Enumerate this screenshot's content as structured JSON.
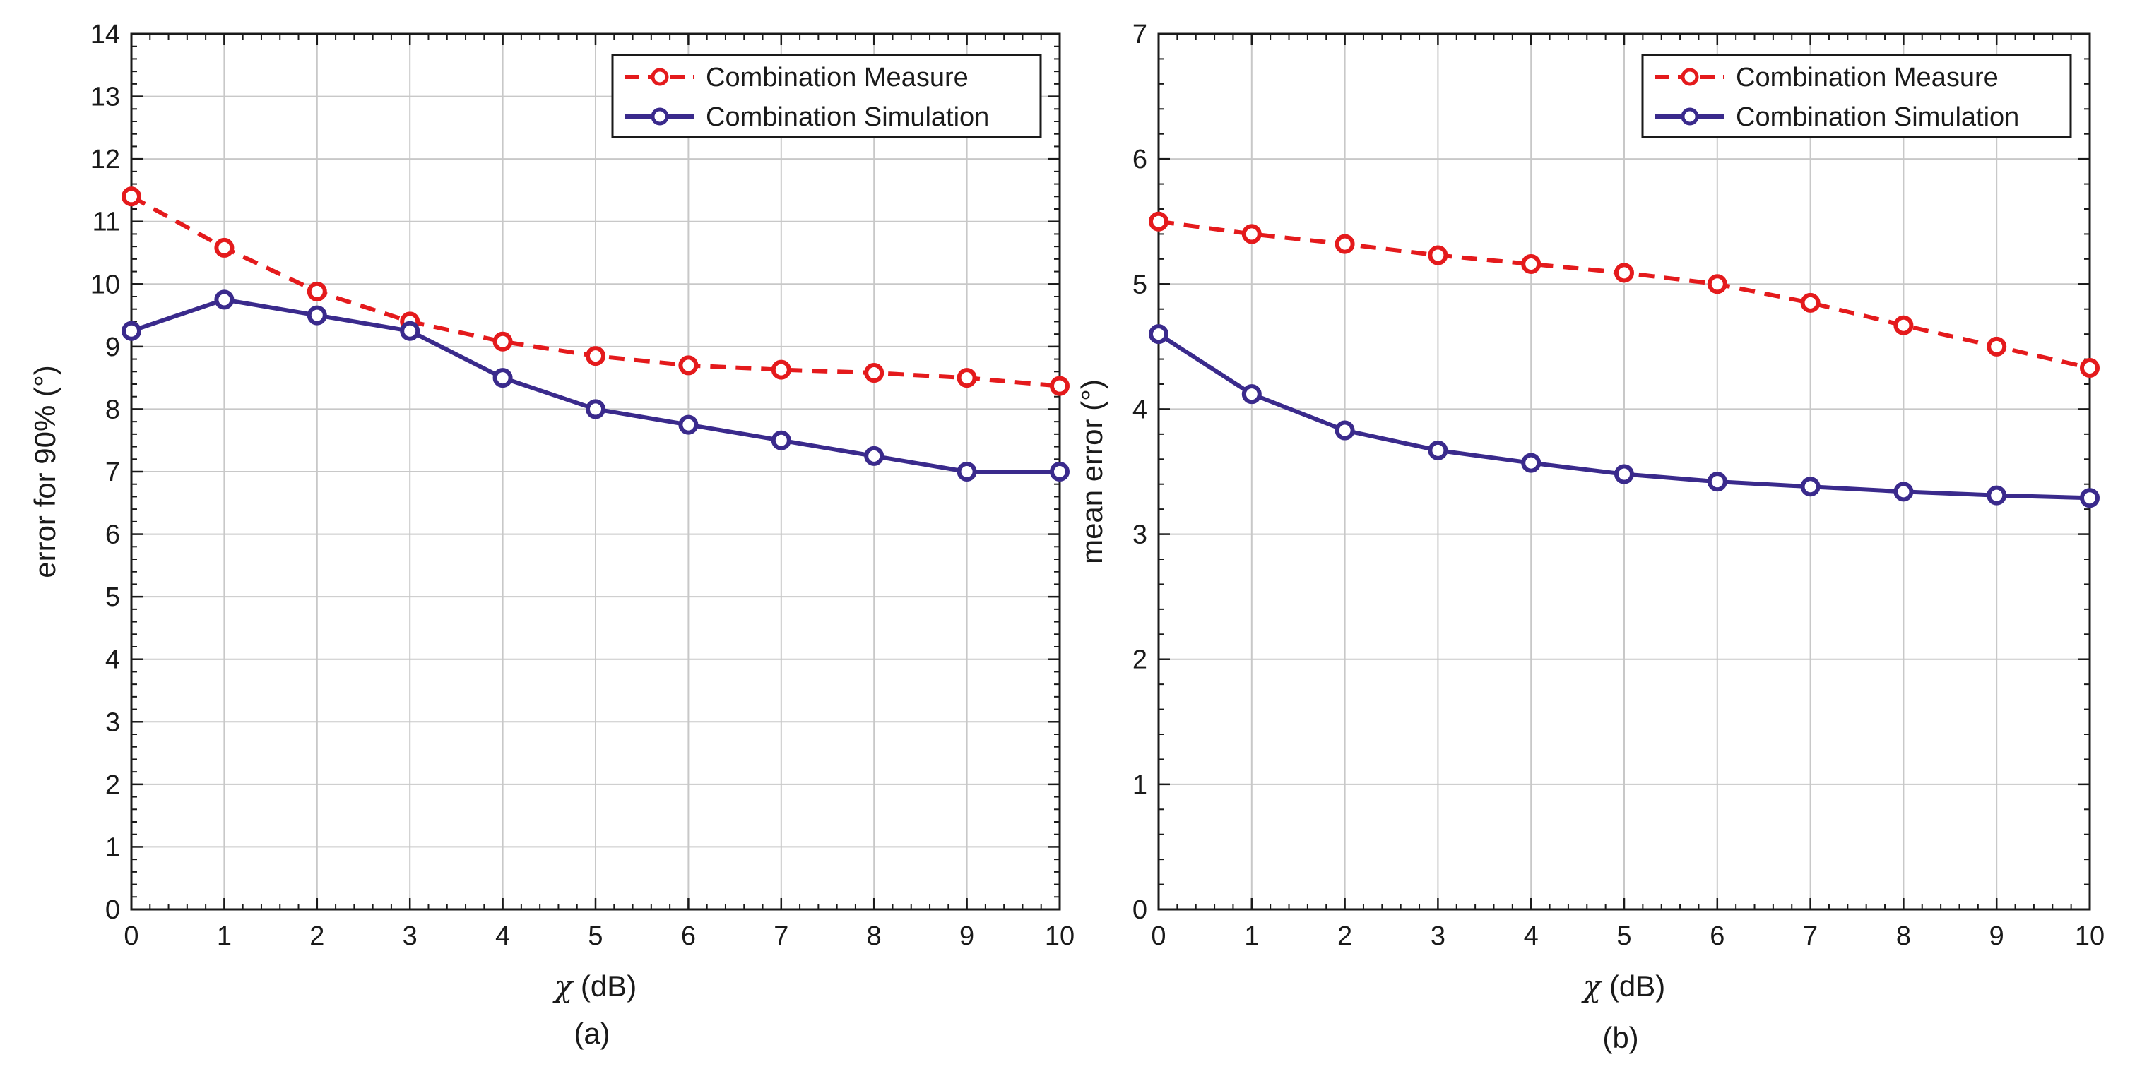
{
  "chart_data": [
    {
      "type": "line",
      "caption": "(a)",
      "xlabel_symbol": "χ",
      "xlabel_unit": "(dB)",
      "ylabel": "error for 90% (°)",
      "xlim": [
        0,
        10
      ],
      "ylim": [
        0,
        14
      ],
      "xticks": [
        0,
        1,
        2,
        3,
        4,
        5,
        6,
        7,
        8,
        9,
        10
      ],
      "yticks": [
        0,
        1,
        2,
        3,
        4,
        5,
        6,
        7,
        8,
        9,
        10,
        11,
        12,
        13,
        14
      ],
      "grid": true,
      "legend_position": "top-right",
      "x": [
        0,
        1,
        2,
        3,
        4,
        5,
        6,
        7,
        8,
        9,
        10
      ],
      "series": [
        {
          "name": "Combination Measure",
          "color": "#e41a1c",
          "style": "dashed",
          "values": [
            11.4,
            10.58,
            9.88,
            9.4,
            9.08,
            8.85,
            8.7,
            8.63,
            8.58,
            8.5,
            8.37
          ]
        },
        {
          "name": "Combination Simulation",
          "color": "#3a2a8c",
          "style": "solid",
          "values": [
            9.25,
            9.75,
            9.5,
            9.25,
            8.5,
            8.0,
            7.75,
            7.5,
            7.25,
            7.0,
            7.0
          ]
        }
      ]
    },
    {
      "type": "line",
      "caption": "(b)",
      "xlabel_symbol": "χ",
      "xlabel_unit": "(dB)",
      "ylabel": "mean error (°)",
      "xlim": [
        0,
        10
      ],
      "ylim": [
        0,
        7
      ],
      "xticks": [
        0,
        1,
        2,
        3,
        4,
        5,
        6,
        7,
        8,
        9,
        10
      ],
      "yticks": [
        0,
        1,
        2,
        3,
        4,
        5,
        6,
        7
      ],
      "grid": true,
      "legend_position": "top-right",
      "x": [
        0,
        1,
        2,
        3,
        4,
        5,
        6,
        7,
        8,
        9,
        10
      ],
      "series": [
        {
          "name": "Combination Measure",
          "color": "#e41a1c",
          "style": "dashed",
          "values": [
            5.5,
            5.4,
            5.32,
            5.23,
            5.16,
            5.09,
            5.0,
            4.85,
            4.67,
            4.5,
            4.33
          ]
        },
        {
          "name": "Combination Simulation",
          "color": "#3a2a8c",
          "style": "solid",
          "values": [
            4.6,
            4.12,
            3.83,
            3.67,
            3.57,
            3.48,
            3.42,
            3.38,
            3.34,
            3.31,
            3.29
          ]
        }
      ]
    }
  ]
}
